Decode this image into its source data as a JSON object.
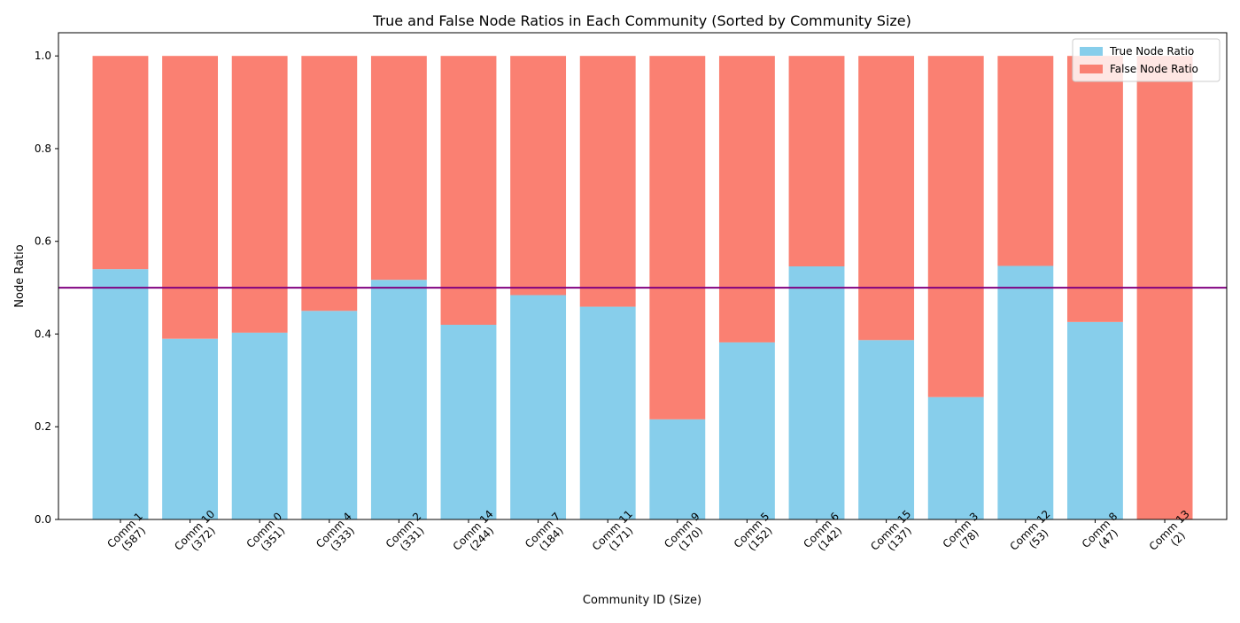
{
  "chart_data": {
    "type": "bar",
    "stacked": true,
    "title": "True and False Node Ratios in Each Community (Sorted by Community Size)",
    "xlabel": "Community ID (Size)",
    "ylabel": "Node Ratio",
    "ylim": [
      0,
      1.05
    ],
    "yticks": [
      "0.0",
      "0.2",
      "0.4",
      "0.6",
      "0.8",
      "1.0"
    ],
    "categories": [
      [
        "Comm 1",
        "(587)"
      ],
      [
        "Comm 10",
        "(372)"
      ],
      [
        "Comm 0",
        "(351)"
      ],
      [
        "Comm 4",
        "(333)"
      ],
      [
        "Comm 2",
        "(331)"
      ],
      [
        "Comm 14",
        "(244)"
      ],
      [
        "Comm 7",
        "(184)"
      ],
      [
        "Comm 11",
        "(171)"
      ],
      [
        "Comm 9",
        "(170)"
      ],
      [
        "Comm 5",
        "(152)"
      ],
      [
        "Comm 6",
        "(142)"
      ],
      [
        "Comm 15",
        "(137)"
      ],
      [
        "Comm 3",
        "(78)"
      ],
      [
        "Comm 12",
        "(53)"
      ],
      [
        "Comm 8",
        "(47)"
      ],
      [
        "Comm 13",
        "(2)"
      ]
    ],
    "series": [
      {
        "name": "True Node Ratio",
        "color": "#87ceeb",
        "values": [
          0.54,
          0.39,
          0.403,
          0.45,
          0.517,
          0.42,
          0.484,
          0.459,
          0.216,
          0.382,
          0.546,
          0.387,
          0.264,
          0.547,
          0.426,
          0.0
        ]
      },
      {
        "name": "False Node Ratio",
        "color": "#fa8072",
        "values": [
          0.46,
          0.61,
          0.597,
          0.55,
          0.483,
          0.58,
          0.516,
          0.541,
          0.784,
          0.618,
          0.454,
          0.613,
          0.736,
          0.453,
          0.574,
          1.0
        ]
      }
    ],
    "reference_line": {
      "y": 0.5,
      "color": "#800080"
    },
    "legend_position": "top-right",
    "grid": false
  }
}
